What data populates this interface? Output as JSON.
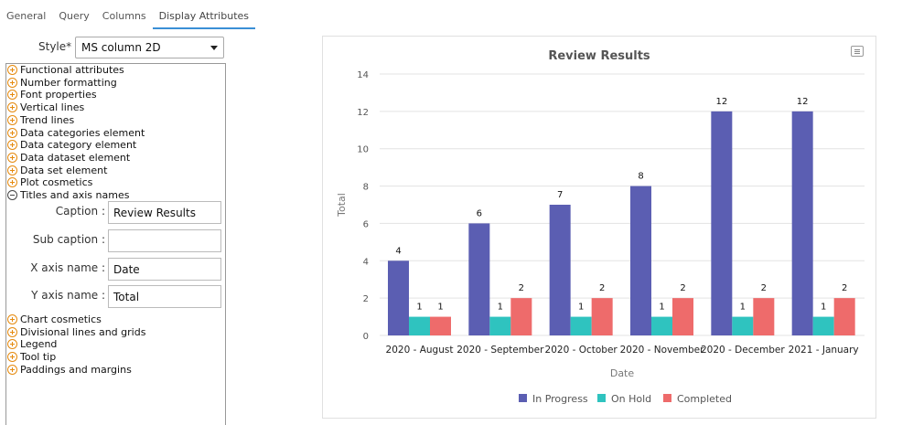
{
  "tabs": [
    "General",
    "Query",
    "Columns",
    "Display Attributes"
  ],
  "active_tab": "Display Attributes",
  "style": {
    "label": "Style* :",
    "value": "MS column 2D"
  },
  "tree_top": [
    "Functional attributes",
    "Number formatting",
    "Font properties",
    "Vertical lines",
    "Trend lines",
    "Data categories element",
    "Data category element",
    "Data dataset element",
    "Data set element",
    "Plot cosmetics"
  ],
  "tree_expanded": "Titles and axis names",
  "fields": {
    "caption": {
      "label": "Caption :",
      "value": "Review Results"
    },
    "subcaption": {
      "label": "Sub caption :",
      "value": ""
    },
    "xaxis": {
      "label": "X axis name :",
      "value": "Date"
    },
    "yaxis": {
      "label": "Y axis name :",
      "value": "Total"
    }
  },
  "tree_bottom": [
    "Chart cosmetics",
    "Divisional lines and grids",
    "Legend",
    "Tool tip",
    "Paddings and margins"
  ],
  "colors": {
    "in_progress": "#5b5eb2",
    "on_hold": "#2fc3bf",
    "completed": "#ee6b6b"
  },
  "chart_data": {
    "type": "bar",
    "title": "Review Results",
    "xlabel": "Date",
    "ylabel": "Total",
    "ylim": [
      0,
      14
    ],
    "yticks": [
      0,
      2,
      4,
      6,
      8,
      10,
      12,
      14
    ],
    "categories": [
      "2020 - August",
      "2020 - September",
      "2020 - October",
      "2020 - November",
      "2020 - December",
      "2021 - January"
    ],
    "series": [
      {
        "name": "In Progress",
        "values": [
          4,
          6,
          7,
          8,
          12,
          12
        ]
      },
      {
        "name": "On Hold",
        "values": [
          1,
          1,
          1,
          1,
          1,
          1
        ]
      },
      {
        "name": "Completed",
        "values": [
          1,
          2,
          2,
          2,
          2,
          2
        ]
      }
    ],
    "legend_position": "bottom-center"
  }
}
